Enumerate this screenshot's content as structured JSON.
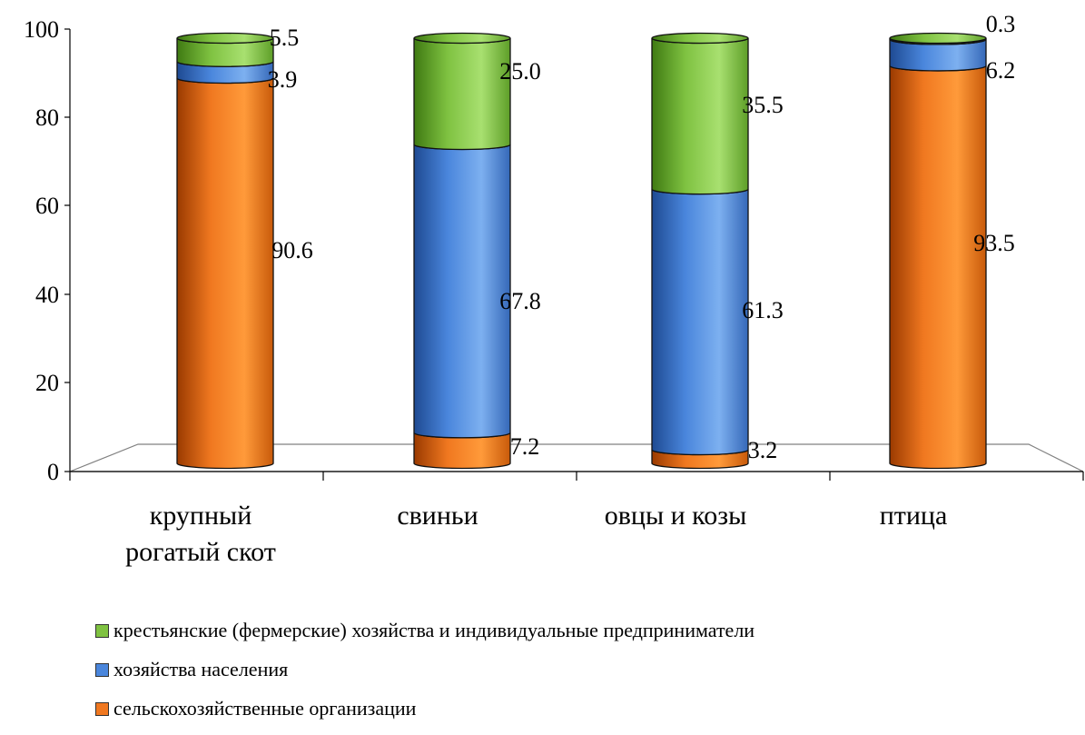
{
  "chart_data": {
    "type": "bar",
    "stacked": true,
    "style": "3d-cylinder",
    "categories": [
      "крупный\nрогатый скот",
      "свиньи",
      "овцы и козы",
      "птица"
    ],
    "ylim": [
      0,
      100
    ],
    "yticks": [
      "0",
      "20",
      "40",
      "60",
      "80",
      "100"
    ],
    "grid": false,
    "legend_position": "bottom",
    "series": [
      {
        "name": "сельскохозяйственные организации",
        "color": "#F07820",
        "values": [
          90.6,
          7.2,
          3.2,
          93.5
        ],
        "labels": [
          "90.6",
          "7.2",
          "3.2",
          "93.5"
        ]
      },
      {
        "name": "хозяйства населения",
        "color": "#4A86DC",
        "values": [
          3.9,
          67.8,
          61.3,
          6.2
        ],
        "labels": [
          "3.9",
          "67.8",
          "61.3",
          "6.2"
        ]
      },
      {
        "name": "крестьянские (фермерские) хозяйства и индивидуальные предприниматели",
        "color": "#7FC241",
        "values": [
          5.5,
          25.0,
          35.5,
          0.3
        ],
        "labels": [
          "5.5",
          "25.0",
          "35.5",
          "0.3"
        ]
      }
    ]
  },
  "legend": [
    {
      "label": "крестьянские (фермерские) хозяйства и индивидуальные предприниматели",
      "color": "#7FC241"
    },
    {
      "label": "хозяйства населения",
      "color": "#4A86DC"
    },
    {
      "label": "сельскохозяйственные организации",
      "color": "#F07820"
    }
  ]
}
